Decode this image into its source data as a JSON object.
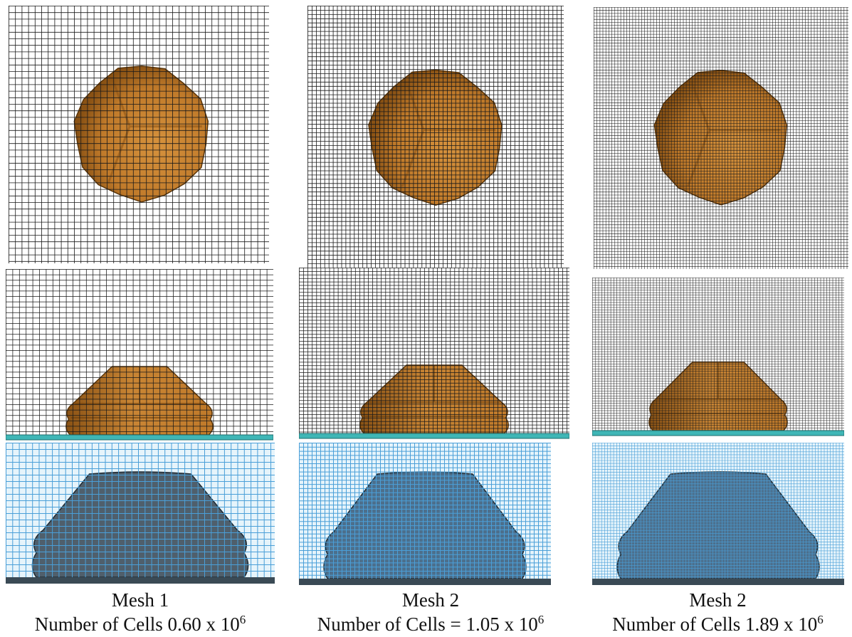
{
  "figure": {
    "columns": [
      {
        "mesh_title": "Mesh 1",
        "cells_text": "Number of Cells 0.60 x 10",
        "cells_exponent": "6",
        "grid_density": 1.0
      },
      {
        "mesh_title": "Mesh 2",
        "cells_text": "Number of Cells = 1.05 x 10",
        "cells_exponent": "6",
        "grid_density": 1.55
      },
      {
        "mesh_title": "Mesh 2",
        "cells_text": "Number of Cells 1.89 x 10",
        "cells_exponent": "6",
        "grid_density": 2.2
      }
    ],
    "colors": {
      "grid_dark": "#1a1a1a",
      "grid_blue": "#4a9fd8",
      "blue_bg": "#e6f4fb",
      "object_orange": "#c07a2a",
      "object_orange_dark": "#8a5214",
      "object_blue": "#4c6f8c",
      "floor_teal": "#3fb6b6",
      "floor_dark": "#3a4a55"
    },
    "icons": {
      "top_view": "droplet-top-view",
      "side_view": "droplet-side-view",
      "section_view": "droplet-section-view"
    }
  }
}
